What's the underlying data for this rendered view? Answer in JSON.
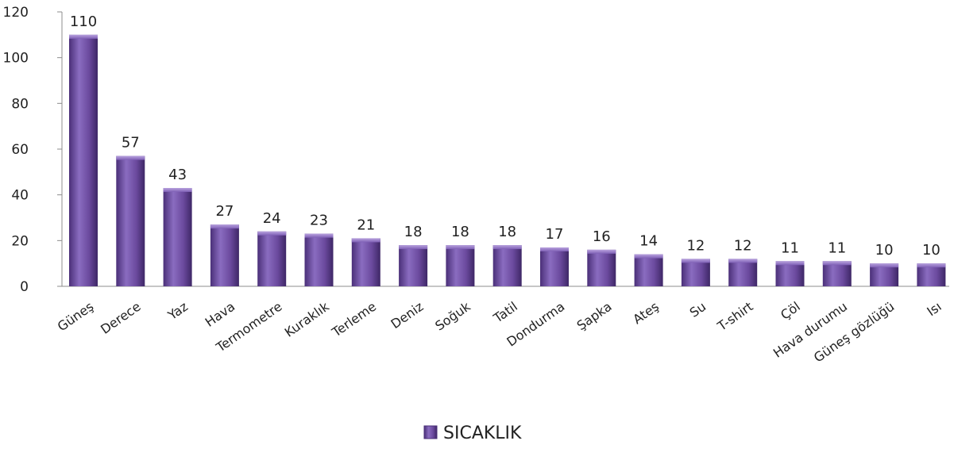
{
  "chart_data": {
    "type": "bar",
    "categories": [
      "Güneş",
      "Derece",
      "Yaz",
      "Hava",
      "Termometre",
      "Kuraklık",
      "Terleme",
      "Deniz",
      "Soğuk",
      "Tatil",
      "Dondurma",
      "Şapka",
      "Ateş",
      "Su",
      "T-shirt",
      "Çöl",
      "Hava durumu",
      "Güneş gözlüğü",
      "Isı"
    ],
    "series": [
      {
        "name": "SICAKLIK",
        "values": [
          110,
          57,
          43,
          27,
          24,
          23,
          21,
          18,
          18,
          18,
          17,
          16,
          14,
          12,
          12,
          11,
          11,
          10,
          10
        ],
        "color": "#6b4a9e"
      }
    ],
    "yticks": [
      0,
      20,
      40,
      60,
      80,
      100,
      120
    ],
    "ylim": [
      0,
      120
    ],
    "grid": false,
    "legend_position": "bottom",
    "data_labels": true
  }
}
